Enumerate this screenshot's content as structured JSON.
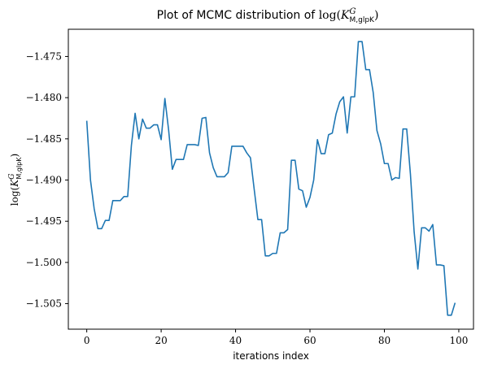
{
  "chart_data": {
    "type": "line",
    "title": "Plot of MCMC distribution of log(K^G_M,glpK)",
    "xlabel": "iterations index",
    "ylabel": "log(K^G_M,glpK)",
    "xlim": [
      -4.95,
      103.95
    ],
    "ylim": [
      -1.5081,
      -1.4717
    ],
    "x_ticks": [
      0,
      20,
      40,
      60,
      80,
      100
    ],
    "y_ticks": [
      -1.505,
      -1.5,
      -1.495,
      -1.49,
      -1.485,
      -1.48,
      -1.475
    ],
    "y_tick_labels": [
      "−1.505",
      "−1.500",
      "−1.495",
      "−1.490",
      "−1.485",
      "−1.480",
      "−1.475"
    ],
    "grid": false,
    "line_color": "#1f77b4",
    "series": [
      {
        "x": [
          0,
          1,
          2,
          3,
          4,
          5,
          6,
          7,
          8,
          9,
          10,
          11,
          12,
          13,
          14,
          15,
          16,
          17,
          18,
          19,
          20,
          21,
          22,
          23,
          24,
          25,
          26,
          27,
          28,
          29,
          30,
          31,
          32,
          33,
          34,
          35,
          36,
          37,
          38,
          39,
          40,
          41,
          42,
          43,
          44,
          45,
          46,
          47,
          48,
          49,
          50,
          51,
          52,
          53,
          54,
          55,
          56,
          57,
          58,
          59,
          60,
          61,
          62,
          63,
          64,
          65,
          66,
          67,
          68,
          69,
          70,
          71,
          72,
          73,
          74,
          75,
          76,
          77,
          78,
          79,
          80,
          81,
          82,
          83,
          84,
          85,
          86,
          87,
          88,
          89,
          90,
          91,
          92,
          93,
          94,
          95,
          96,
          97,
          98,
          99
        ],
        "y": [
          -1.4828,
          -1.49,
          -1.4935,
          -1.4959,
          -1.4959,
          -1.4949,
          -1.4949,
          -1.4925,
          -1.4925,
          -1.4925,
          -1.492,
          -1.492,
          -1.4858,
          -1.4819,
          -1.485,
          -1.4826,
          -1.4837,
          -1.4837,
          -1.4833,
          -1.4833,
          -1.4851,
          -1.4801,
          -1.4839,
          -1.4887,
          -1.4875,
          -1.4875,
          -1.4875,
          -1.4857,
          -1.4857,
          -1.4857,
          -1.4858,
          -1.4825,
          -1.4824,
          -1.4867,
          -1.4885,
          -1.4896,
          -1.4896,
          -1.4896,
          -1.4891,
          -1.4859,
          -1.4859,
          -1.4859,
          -1.4859,
          -1.4867,
          -1.4873,
          -1.4911,
          -1.4948,
          -1.4948,
          -1.4992,
          -1.4992,
          -1.4989,
          -1.4989,
          -1.4964,
          -1.4964,
          -1.496,
          -1.4876,
          -1.4876,
          -1.4911,
          -1.4913,
          -1.4933,
          -1.4921,
          -1.49,
          -1.4851,
          -1.4868,
          -1.4868,
          -1.4845,
          -1.4843,
          -1.482,
          -1.4805,
          -1.4799,
          -1.4843,
          -1.4799,
          -1.4799,
          -1.4732,
          -1.4732,
          -1.4766,
          -1.4766,
          -1.4794,
          -1.484,
          -1.4856,
          -1.488,
          -1.488,
          -1.49,
          -1.4897,
          -1.4898,
          -1.4838,
          -1.4838,
          -1.4893,
          -1.4963,
          -1.5008,
          -1.4958,
          -1.4958,
          -1.4962,
          -1.4954,
          -1.5003,
          -1.5003,
          -1.5004,
          -1.5064,
          -1.5064,
          -1.5049
        ]
      }
    ]
  }
}
